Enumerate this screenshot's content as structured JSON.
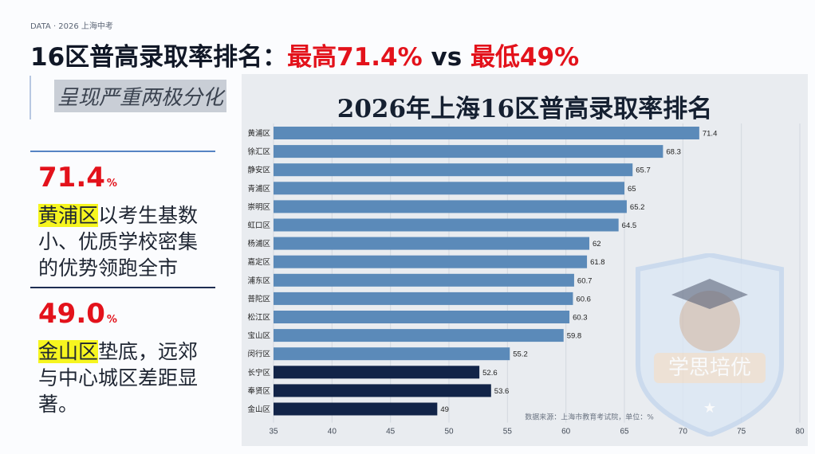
{
  "tag": "DATA · 2026 上海中考",
  "headline": {
    "part1": "16区普高录取率排名：",
    "highest": "最高71.4%",
    "vs": " vs ",
    "lowest": "最低49%"
  },
  "subtitle": "呈现严重两极分化",
  "highlights": [
    {
      "value": "71.4",
      "unit": "%",
      "district": "黄浦区",
      "text": "以考生基数小、优质学校密集的优势领跑全市"
    },
    {
      "value": "49.0",
      "unit": "%",
      "district": "金山区",
      "text": "垫底，远郊与中心城区差距显著。"
    }
  ],
  "watermark": "学思培优",
  "chart_data": {
    "type": "bar",
    "orientation": "horizontal",
    "title": "2026年上海16区普高录取率排名",
    "source_note": "数据来源：上海市教育考试院，单位：%",
    "categories": [
      "黄浦区",
      "徐汇区",
      "静安区",
      "青浦区",
      "崇明区",
      "虹口区",
      "杨浦区",
      "嘉定区",
      "浦东区",
      "普陀区",
      "松江区",
      "宝山区",
      "闵行区",
      "长宁区",
      "奉贤区",
      "金山区"
    ],
    "values": [
      71.4,
      68.3,
      65.7,
      65,
      65.2,
      64.5,
      62,
      61.8,
      60.7,
      60.6,
      60.3,
      59.8,
      55.2,
      52.6,
      53.6,
      49
    ],
    "value_labels": [
      "71.4",
      "68.3",
      "65.7",
      "65",
      "65.2",
      "64.5",
      "62",
      "61.8",
      "60.7",
      "60.6",
      "60.3",
      "59.8",
      "55.2",
      "52.6",
      "53.6",
      "49"
    ],
    "xlim": [
      35,
      80
    ],
    "xticks": [
      35,
      40,
      45,
      50,
      55,
      60,
      65,
      70,
      75,
      80
    ],
    "colors": {
      "upper": "#5b8ab9",
      "lower": "#122448"
    },
    "dark_from_index": 13,
    "grid": true
  }
}
